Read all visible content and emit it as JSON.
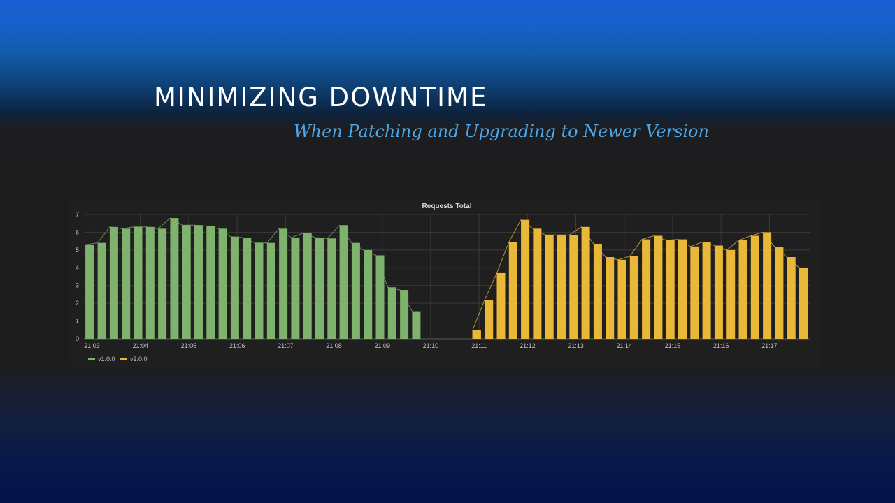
{
  "slide": {
    "title": "MINIMIZING DOWNTIME",
    "subtitle": "When Patching and Upgrading to Newer Version"
  },
  "chart_data": {
    "type": "bar",
    "title": "Requests Total",
    "xlabel": "",
    "ylabel": "",
    "ylim": [
      0,
      7
    ],
    "yticks": [
      0,
      1,
      2,
      3,
      4,
      5,
      6,
      7
    ],
    "xlim": [
      "21:02:50",
      "21:17:50"
    ],
    "xticks": [
      "21:03",
      "21:04",
      "21:05",
      "21:06",
      "21:07",
      "21:08",
      "21:09",
      "21:10",
      "21:11",
      "21:12",
      "21:13",
      "21:14",
      "21:15",
      "21:16",
      "21:17"
    ],
    "grid": true,
    "legend_position": "bottom-left",
    "series": [
      {
        "name": "v1.0.0",
        "color": "#7eb26d",
        "x": [
          "21:02:52",
          "21:03:07",
          "21:03:22",
          "21:03:37",
          "21:03:52",
          "21:04:07",
          "21:04:22",
          "21:04:37",
          "21:04:52",
          "21:05:07",
          "21:05:22",
          "21:05:37",
          "21:05:52",
          "21:06:07",
          "21:06:22",
          "21:06:37",
          "21:06:52",
          "21:07:07",
          "21:07:22",
          "21:07:37",
          "21:07:52",
          "21:08:07",
          "21:08:22",
          "21:08:37",
          "21:08:52",
          "21:09:07",
          "21:09:22",
          "21:09:37"
        ],
        "values": [
          5.3,
          5.4,
          6.3,
          6.2,
          6.3,
          6.3,
          6.2,
          6.8,
          6.4,
          6.4,
          6.35,
          6.2,
          5.75,
          5.7,
          5.4,
          5.4,
          6.2,
          5.7,
          5.95,
          5.7,
          5.65,
          6.4,
          5.4,
          5.0,
          4.7,
          2.9,
          2.75,
          1.55
        ]
      },
      {
        "name": "v2.0.0",
        "color": "#eab839",
        "x": [
          "21:10:52",
          "21:11:07",
          "21:11:22",
          "21:11:37",
          "21:11:52",
          "21:12:07",
          "21:12:22",
          "21:12:37",
          "21:12:52",
          "21:13:07",
          "21:13:22",
          "21:13:37",
          "21:13:52",
          "21:14:07",
          "21:14:22",
          "21:14:37",
          "21:14:52",
          "21:15:07",
          "21:15:22",
          "21:15:37",
          "21:15:52",
          "21:16:07",
          "21:16:22",
          "21:16:37",
          "21:16:52",
          "21:17:07",
          "21:17:22",
          "21:17:37"
        ],
        "values": [
          0.5,
          2.2,
          3.7,
          5.45,
          6.7,
          6.2,
          5.85,
          5.85,
          5.85,
          6.3,
          5.35,
          4.6,
          4.45,
          4.65,
          5.6,
          5.8,
          5.55,
          5.6,
          5.2,
          5.45,
          5.25,
          5.0,
          5.55,
          5.8,
          6.0,
          5.15,
          4.6,
          4.0
        ]
      }
    ]
  }
}
